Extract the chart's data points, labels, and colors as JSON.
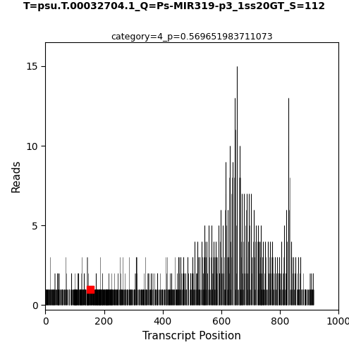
{
  "title": "T=psu.T.00032704.1_Q=Ps-MIR319-p3_1ss20GT_S=112",
  "subtitle": "category=4_p=0.569651983711073",
  "xlabel": "Transcript Position",
  "ylabel": "Reads",
  "xlim": [
    0,
    1000
  ],
  "ylim": [
    -0.3,
    16.5
  ],
  "yticks": [
    0,
    5,
    10,
    15
  ],
  "xticks": [
    0,
    200,
    400,
    600,
    800,
    1000
  ],
  "cleavage_site": 152,
  "cleavage_reads": 1,
  "line_color": "#000000",
  "red_color": "#ff0000",
  "bg_color": "#ffffff",
  "title_fontsize": 10,
  "subtitle_fontsize": 9,
  "axis_fontsize": 11,
  "tick_fontsize": 10,
  "seed": 2024,
  "positions": [
    3,
    6,
    9,
    14,
    20,
    26,
    31,
    38,
    45,
    52,
    58,
    65,
    72,
    80,
    88,
    95,
    100,
    104,
    108,
    112,
    116,
    120,
    124,
    128,
    132,
    136,
    140,
    144,
    148,
    152,
    156,
    160,
    163,
    166,
    169,
    172,
    175,
    178,
    181,
    184,
    187,
    190,
    193,
    196,
    199,
    202,
    205,
    208,
    212,
    216,
    220,
    224,
    228,
    232,
    237,
    242,
    248,
    255,
    262,
    270,
    278,
    287,
    295,
    302,
    310,
    318,
    326,
    334,
    342,
    350,
    358,
    366,
    374,
    382,
    390,
    398,
    406,
    414,
    422,
    430,
    438,
    446,
    454,
    462,
    470,
    478,
    486,
    494,
    502,
    510,
    518,
    526,
    534,
    542,
    550,
    558,
    566,
    574,
    582,
    590,
    598,
    606,
    614,
    622,
    630,
    638,
    646,
    654,
    662,
    670,
    678,
    686,
    694,
    702,
    710,
    718,
    726,
    734,
    742,
    750,
    758,
    766,
    774,
    782,
    790,
    798,
    806,
    814,
    822,
    830,
    838,
    846,
    854,
    862,
    870,
    878,
    886,
    894,
    902,
    910
  ],
  "reads": [
    1,
    1,
    1,
    1,
    1,
    1,
    1,
    1,
    1,
    1,
    1,
    1,
    1,
    1,
    2,
    1,
    1,
    1,
    1,
    2,
    1,
    1,
    1,
    1,
    2,
    1,
    1,
    1,
    1,
    1,
    1,
    1,
    1,
    1,
    1,
    2,
    1,
    1,
    1,
    1,
    1,
    1,
    1,
    1,
    1,
    1,
    1,
    1,
    1,
    1,
    1,
    1,
    1,
    1,
    1,
    1,
    1,
    1,
    1,
    1,
    1,
    1,
    1,
    1,
    3,
    1,
    1,
    1,
    1,
    2,
    1,
    1,
    1,
    2,
    1,
    1,
    1,
    1,
    1,
    2,
    1,
    1,
    3,
    3,
    3,
    2,
    3,
    2,
    3,
    4,
    4,
    3,
    4,
    5,
    4,
    5,
    5,
    4,
    4,
    5,
    6,
    5,
    9,
    6,
    10,
    9,
    13,
    15,
    10,
    7,
    7,
    7,
    7,
    7,
    6,
    5,
    5,
    5,
    4,
    4,
    4,
    4,
    4,
    3,
    3,
    3,
    4,
    5,
    6,
    13,
    4,
    3,
    3,
    3,
    3,
    1,
    1,
    1,
    1,
    1
  ]
}
